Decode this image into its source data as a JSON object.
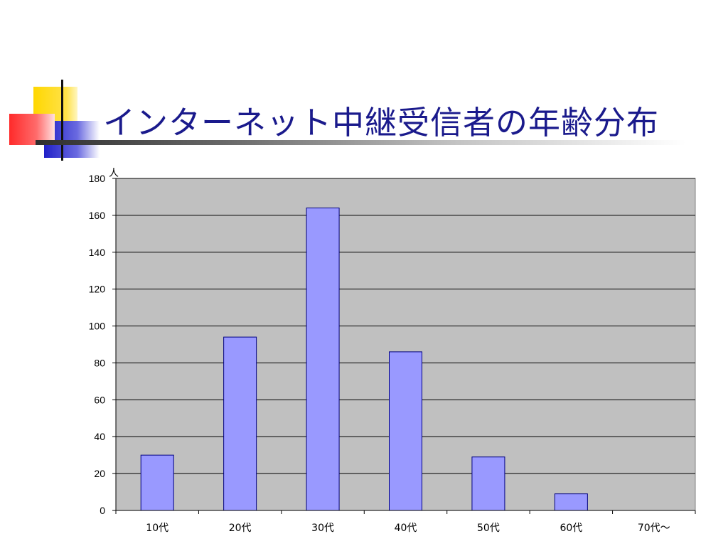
{
  "slide": {
    "title": "インターネット中継受信者の年齢分布"
  },
  "colors": {
    "title": "#1a1a8c",
    "plot_background": "#c0c0c0",
    "bar_fill": "#9999ff",
    "bar_stroke": "#000080",
    "gridline": "#000000",
    "deco_yellow": "#ffd700",
    "deco_red": "#ff3b3b",
    "deco_blue": "#3030d0"
  },
  "chart_data": {
    "type": "bar",
    "title": "",
    "xlabel": "",
    "ylabel": "人",
    "categories": [
      "10代",
      "20代",
      "30代",
      "40代",
      "50代",
      "60代",
      "70代～"
    ],
    "values": [
      30,
      94,
      164,
      86,
      29,
      9,
      0
    ],
    "ylim": [
      0,
      180
    ],
    "yticks": [
      0,
      20,
      40,
      60,
      80,
      100,
      120,
      140,
      160,
      180
    ],
    "grid": true,
    "legend": "none"
  }
}
